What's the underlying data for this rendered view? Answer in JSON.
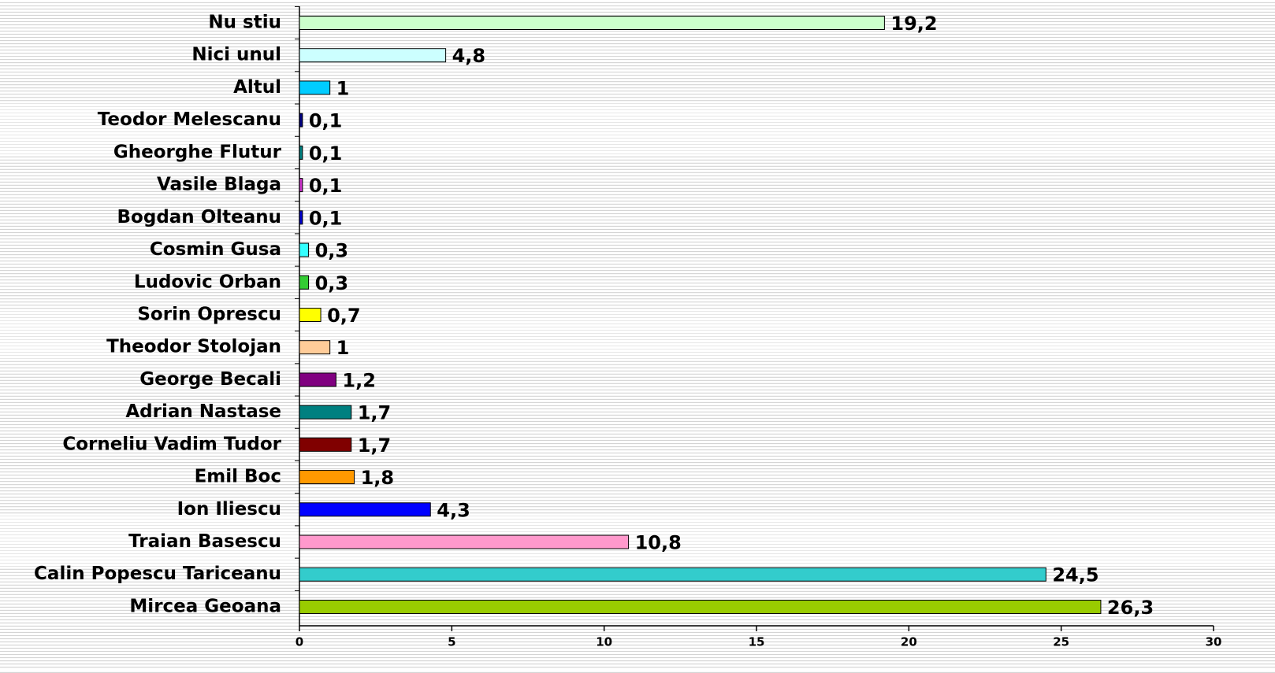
{
  "chart_data": {
    "type": "barh",
    "categories": [
      "Nu stiu",
      "Nici unul",
      "Altul",
      "Teodor Melescanu",
      "Gheorghe Flutur",
      "Vasile Blaga",
      "Bogdan Olteanu",
      "Cosmin Gusa",
      "Ludovic Orban",
      "Sorin Oprescu",
      "Theodor Stolojan",
      "George Becali",
      "Adrian Nastase",
      "Corneliu Vadim Tudor",
      "Emil Boc",
      "Ion Iliescu",
      "Traian Basescu",
      "Calin Popescu Tariceanu",
      "Mircea Geoana"
    ],
    "values": [
      19.2,
      4.8,
      1,
      0.1,
      0.1,
      0.1,
      0.1,
      0.3,
      0.3,
      0.7,
      1,
      1.2,
      1.7,
      1.7,
      1.8,
      4.3,
      10.8,
      24.5,
      26.3
    ],
    "value_labels": [
      "19,2",
      "4,8",
      "1",
      "0,1",
      "0,1",
      "0,1",
      "0,1",
      "0,3",
      "0,3",
      "0,7",
      "1",
      "1,2",
      "1,7",
      "1,7",
      "1,8",
      "4,3",
      "10,8",
      "24,5",
      "26,3"
    ],
    "colors": [
      "#ccffcc",
      "#ccffff",
      "#00ccff",
      "#000080",
      "#008080",
      "#cc33cc",
      "#0000cc",
      "#33ffff",
      "#33cc33",
      "#ffff00",
      "#ffcc99",
      "#800080",
      "#008080",
      "#800000",
      "#ff9900",
      "#0000ff",
      "#ff99cc",
      "#33cccc",
      "#99cc00"
    ],
    "xlim": [
      0,
      30
    ],
    "xticks": [
      0,
      5,
      10,
      15,
      20,
      25,
      30
    ]
  }
}
